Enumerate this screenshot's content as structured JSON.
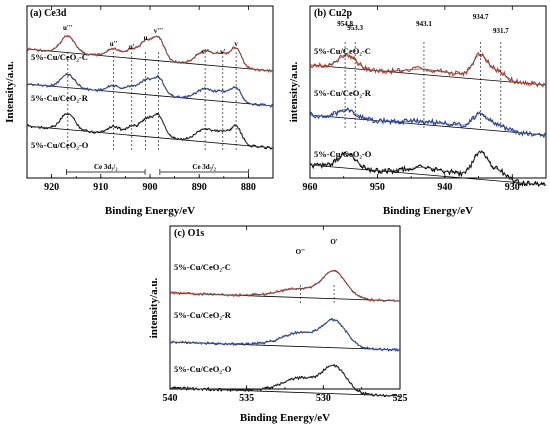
{
  "chart_data": [
    {
      "type": "line",
      "panel_label": "(a)",
      "title": "Ce3d",
      "xlabel": "Binding Energy/eV",
      "ylabel": "Intensity/a.u.",
      "xlim": [
        925,
        875
      ],
      "x_ticks": [
        920,
        910,
        900,
        890,
        880
      ],
      "grid": false,
      "series": [
        {
          "name": "5%-Cu/CeO2-C",
          "color": "#c0392b",
          "offset": 2.0
        },
        {
          "name": "5%-Cu/CeO2-R",
          "color": "#1f3fae",
          "offset": 1.0
        },
        {
          "name": "5%-Cu/CeO2-O",
          "color": "#000000",
          "offset": 0.0
        }
      ],
      "peaks": [
        {
          "x": 916.7,
          "label": "u'''"
        },
        {
          "x": 907.4,
          "label": "u''"
        },
        {
          "x": 903.7,
          "label": "u'"
        },
        {
          "x": 900.9,
          "label": "u"
        },
        {
          "x": 898.3,
          "label": "v'''"
        },
        {
          "x": 888.8,
          "label": "v''"
        },
        {
          "x": 885.2,
          "label": "v'"
        },
        {
          "x": 882.5,
          "label": "v"
        }
      ],
      "regions": [
        {
          "label": "Ce 3d3/2",
          "x": [
            917,
            901
          ]
        },
        {
          "label": "Ce 3d5/2",
          "x": [
            898,
            880
          ]
        }
      ]
    },
    {
      "type": "line",
      "panel_label": "(b)",
      "title": "Cu2p",
      "xlabel": "Binding Energy/eV",
      "ylabel": "intensity/a.u.",
      "xlim": [
        960,
        925
      ],
      "x_ticks": [
        960,
        950,
        940,
        930
      ],
      "grid": false,
      "series": [
        {
          "name": "5%-Cu/CeO2-C",
          "color": "#c0392b",
          "offset": 2.0
        },
        {
          "name": "5%-Cu/CeO2-R",
          "color": "#1f3fae",
          "offset": 1.1
        },
        {
          "name": "5%-Cu/CeO2-O",
          "color": "#000000",
          "offset": 0.0
        }
      ],
      "peaks": [
        {
          "x": 954.8,
          "label": "954.8"
        },
        {
          "x": 953.3,
          "label": "953.3"
        },
        {
          "x": 943.1,
          "label": "943.1"
        },
        {
          "x": 934.7,
          "label": "934.7"
        },
        {
          "x": 931.7,
          "label": "931.7"
        }
      ]
    },
    {
      "type": "line",
      "panel_label": "(c)",
      "title": "O1s",
      "xlabel": "Binding Energy/eV",
      "ylabel": "intensity/a.u.",
      "xlim": [
        540,
        525
      ],
      "x_ticks": [
        540,
        535,
        530,
        525
      ],
      "grid": false,
      "series": [
        {
          "name": "5%-Cu/CeO2-C",
          "color": "#c0392b",
          "offset": 2.0
        },
        {
          "name": "5%-Cu/CeO2-R",
          "color": "#1f3fae",
          "offset": 1.0
        },
        {
          "name": "5%-Cu/CeO2-O",
          "color": "#000000",
          "offset": 0.0
        }
      ],
      "peaks": [
        {
          "x": 531.5,
          "label": "O''"
        },
        {
          "x": 529.3,
          "label": "O'"
        }
      ]
    }
  ]
}
